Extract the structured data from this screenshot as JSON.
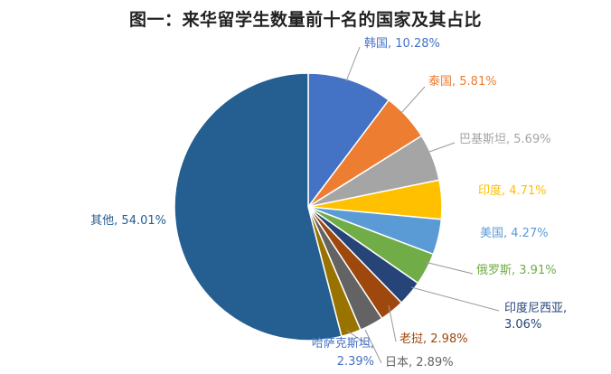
{
  "chart_data": {
    "type": "pie",
    "title": "图一：来华留学生数量前十名的国家及其占比",
    "slices": [
      {
        "label": "韩国",
        "value": 10.28,
        "text": "韩国, 10.28%",
        "color": "#4472C4"
      },
      {
        "label": "泰国",
        "value": 5.81,
        "text": "泰国, 5.81%",
        "color": "#ED7D31"
      },
      {
        "label": "巴基斯坦",
        "value": 5.69,
        "text": "巴基斯坦, 5.69%",
        "color": "#A5A5A5"
      },
      {
        "label": "印度",
        "value": 4.71,
        "text": "印度, 4.71%",
        "color": "#FFC000"
      },
      {
        "label": "美国",
        "value": 4.27,
        "text": "美国, 4.27%",
        "color": "#5B9BD5"
      },
      {
        "label": "俄罗斯",
        "value": 3.91,
        "text": "俄罗斯, 3.91%",
        "color": "#70AD47"
      },
      {
        "label": "印度尼西亚",
        "value": 3.06,
        "text": [
          "印度尼西亚,",
          "3.06%"
        ],
        "color": "#264478"
      },
      {
        "label": "老挝",
        "value": 2.98,
        "text": "老挝, 2.98%",
        "color": "#9E480E"
      },
      {
        "label": "日本",
        "value": 2.89,
        "text": "日本, 2.89%",
        "color": "#636363"
      },
      {
        "label": "哈萨克斯坦",
        "value": 2.39,
        "text": [
          "哈萨克斯坦,",
          "2.39%"
        ],
        "color": "#997300"
      },
      {
        "label": "其他",
        "value": 54.01,
        "text": "其他, 54.01%",
        "color": "#255E91"
      }
    ]
  }
}
